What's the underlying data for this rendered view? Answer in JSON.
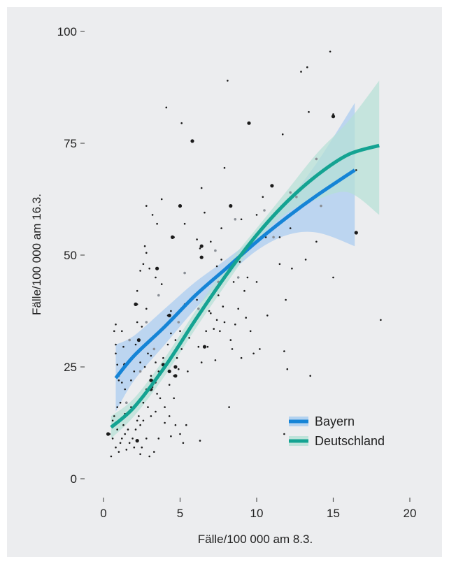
{
  "chart_data": {
    "type": "scatter",
    "xlabel": "Fälle/100 000 am 8.3.",
    "ylabel": "Fälle/100 000 am 16.3.",
    "xlim": [
      0,
      20
    ],
    "ylim": [
      0,
      100
    ],
    "x_ticks": [
      "0",
      "5",
      "10",
      "15",
      "20"
    ],
    "y_ticks": [
      "0",
      "25",
      "50",
      "75",
      "100"
    ],
    "grid": false,
    "legend_position": "bottom-right",
    "background": "#ecedef",
    "series": [
      {
        "name": "Bayern",
        "color": "#1584d6",
        "band_color": "#a9ccf0",
        "fit": [
          [
            0.8,
            22.5
          ],
          [
            2,
            27.5
          ],
          [
            4,
            34
          ],
          [
            6,
            41
          ],
          [
            8,
            47
          ],
          [
            10,
            53
          ],
          [
            12,
            58.5
          ],
          [
            14,
            63.5
          ],
          [
            16.4,
            69
          ]
        ],
        "ci_upper": [
          [
            0.8,
            30
          ],
          [
            2,
            32
          ],
          [
            4,
            38
          ],
          [
            6,
            44
          ],
          [
            8,
            49
          ],
          [
            10,
            54.5
          ],
          [
            12,
            62
          ],
          [
            14,
            71
          ],
          [
            16.4,
            84
          ]
        ],
        "ci_lower": [
          [
            0.8,
            15
          ],
          [
            2,
            22
          ],
          [
            4,
            30
          ],
          [
            6,
            38
          ],
          [
            8,
            45
          ],
          [
            10,
            51
          ],
          [
            12,
            54.5
          ],
          [
            14,
            55
          ],
          [
            16.4,
            52
          ]
        ]
      },
      {
        "name": "Deutschland",
        "color": "#14a392",
        "band_color": "#b6e0d6",
        "fit": [
          [
            0.5,
            11.5
          ],
          [
            2,
            16
          ],
          [
            4,
            25
          ],
          [
            6,
            35.5
          ],
          [
            8,
            45.5
          ],
          [
            10,
            54.5
          ],
          [
            12,
            62
          ],
          [
            14,
            68
          ],
          [
            16,
            72.5
          ],
          [
            18,
            74.5
          ]
        ],
        "ci_upper": [
          [
            0.5,
            14
          ],
          [
            2,
            18
          ],
          [
            4,
            27
          ],
          [
            6,
            37.5
          ],
          [
            8,
            47.5
          ],
          [
            10,
            56
          ],
          [
            12,
            64.5
          ],
          [
            14,
            73
          ],
          [
            16,
            80
          ],
          [
            18,
            89
          ]
        ],
        "ci_lower": [
          [
            0.5,
            9
          ],
          [
            2,
            14
          ],
          [
            4,
            23
          ],
          [
            6,
            33.5
          ],
          [
            8,
            43.5
          ],
          [
            10,
            53
          ],
          [
            12,
            59.5
          ],
          [
            14,
            62.5
          ],
          [
            16,
            64
          ],
          [
            18,
            59
          ]
        ]
      }
    ],
    "points": [
      [
        14.8,
        95.5
      ],
      [
        13.3,
        92
      ],
      [
        12.9,
        91
      ],
      [
        9.5,
        79.5
      ],
      [
        8.1,
        89
      ],
      [
        4.1,
        83
      ],
      [
        5.8,
        75.5
      ],
      [
        5.1,
        79.5
      ],
      [
        15,
        81.5
      ],
      [
        13.4,
        82
      ],
      [
        11.7,
        77
      ],
      [
        7.9,
        69.5
      ],
      [
        11,
        65.5
      ],
      [
        10.4,
        63
      ],
      [
        10,
        59
      ],
      [
        8.3,
        61
      ],
      [
        6.4,
        65
      ],
      [
        5,
        61
      ],
      [
        3.8,
        62.5
      ],
      [
        2.8,
        61
      ],
      [
        3.2,
        59
      ],
      [
        2.7,
        52
      ],
      [
        2.8,
        50.5
      ],
      [
        3.5,
        57
      ],
      [
        5.3,
        57
      ],
      [
        6.6,
        59.5
      ],
      [
        7.7,
        56
      ],
      [
        9,
        58
      ],
      [
        10.6,
        54
      ],
      [
        11.5,
        54
      ],
      [
        9.8,
        53.5
      ],
      [
        12.2,
        56
      ],
      [
        13.9,
        53
      ],
      [
        16.5,
        55
      ],
      [
        4.6,
        54
      ],
      [
        6.1,
        53.5
      ],
      [
        6.3,
        51.5
      ],
      [
        6.4,
        49.5
      ],
      [
        7,
        53
      ],
      [
        7.4,
        47.5
      ],
      [
        8.9,
        48.5
      ],
      [
        8.5,
        44
      ],
      [
        9.4,
        45
      ],
      [
        10,
        44
      ],
      [
        11.5,
        48
      ],
      [
        13.2,
        49
      ],
      [
        12.3,
        47
      ],
      [
        15,
        45
      ],
      [
        2.6,
        48
      ],
      [
        2.4,
        46.5
      ],
      [
        3,
        47
      ],
      [
        3.4,
        45
      ],
      [
        3.8,
        43.5
      ],
      [
        2.2,
        42
      ],
      [
        2.8,
        38
      ],
      [
        2.2,
        39
      ],
      [
        4.2,
        36.5
      ],
      [
        4.4,
        37.5
      ],
      [
        5.3,
        39
      ],
      [
        6.1,
        40
      ],
      [
        7,
        37
      ],
      [
        7.4,
        35.5
      ],
      [
        7.6,
        33
      ],
      [
        8.3,
        31
      ],
      [
        8.4,
        29
      ],
      [
        9,
        27
      ],
      [
        9.8,
        28
      ],
      [
        10.2,
        29
      ],
      [
        11.8,
        28.5
      ],
      [
        11.9,
        40
      ],
      [
        9.2,
        42
      ],
      [
        7.8,
        38.5
      ],
      [
        5.7,
        34
      ],
      [
        5,
        33
      ],
      [
        4.7,
        31
      ],
      [
        4.4,
        32.5
      ],
      [
        4.2,
        30
      ],
      [
        5.1,
        29
      ],
      [
        6.2,
        29.5
      ],
      [
        6.7,
        33
      ],
      [
        6.8,
        29.5
      ],
      [
        7.3,
        26.5
      ],
      [
        6.4,
        26
      ],
      [
        5.5,
        24
      ],
      [
        4.9,
        24.5
      ],
      [
        4.6,
        23
      ],
      [
        4.3,
        21
      ],
      [
        3.9,
        27
      ],
      [
        3.4,
        26
      ],
      [
        3.1,
        27.5
      ],
      [
        2.9,
        28
      ],
      [
        2.7,
        25
      ],
      [
        2.4,
        26
      ],
      [
        2,
        24
      ],
      [
        1.8,
        22
      ],
      [
        1.5,
        25.5
      ],
      [
        1.4,
        20
      ],
      [
        1.2,
        21.5
      ],
      [
        1,
        22
      ],
      [
        0.9,
        25.5
      ],
      [
        0.8,
        28
      ],
      [
        0.8,
        30
      ],
      [
        0.7,
        33
      ],
      [
        0.8,
        34.5
      ],
      [
        1.2,
        33
      ],
      [
        1.3,
        29.5
      ],
      [
        2.1,
        30
      ],
      [
        2.3,
        31
      ],
      [
        2.5,
        34
      ],
      [
        2.2,
        35
      ],
      [
        3.2,
        22
      ],
      [
        3.5,
        19
      ],
      [
        3.2,
        20.5
      ],
      [
        3.7,
        18
      ],
      [
        4,
        16
      ],
      [
        4.3,
        14
      ],
      [
        4.6,
        18
      ],
      [
        4.7,
        12
      ],
      [
        5,
        10
      ],
      [
        5.4,
        12
      ],
      [
        5.2,
        8
      ],
      [
        4.4,
        9.5
      ],
      [
        4,
        12.5
      ],
      [
        3.4,
        15
      ],
      [
        3.1,
        14
      ],
      [
        2.9,
        16
      ],
      [
        2.6,
        13
      ],
      [
        2.4,
        12
      ],
      [
        2.2,
        13
      ],
      [
        2.1,
        11
      ],
      [
        1.9,
        9
      ],
      [
        1.7,
        8
      ],
      [
        1.6,
        11
      ],
      [
        1.4,
        10
      ],
      [
        1.3,
        12
      ],
      [
        1.1,
        8
      ],
      [
        1,
        6
      ],
      [
        0.8,
        7
      ],
      [
        0.6,
        9
      ],
      [
        0.5,
        5
      ],
      [
        0.4,
        10
      ],
      [
        0.9,
        11
      ],
      [
        1.2,
        9
      ],
      [
        1.5,
        6.5
      ],
      [
        2,
        7
      ],
      [
        2.2,
        8.5
      ],
      [
        2.4,
        5.5
      ],
      [
        2.5,
        7
      ],
      [
        2.8,
        9
      ],
      [
        3,
        5
      ],
      [
        3.3,
        6
      ],
      [
        3.6,
        9
      ],
      [
        0.6,
        13
      ],
      [
        0.7,
        14
      ],
      [
        0.9,
        16
      ],
      [
        1.1,
        17
      ],
      [
        1.4,
        14.5
      ],
      [
        1.8,
        16
      ],
      [
        2.3,
        14
      ],
      [
        2.6,
        17
      ],
      [
        2.8,
        20
      ],
      [
        3.1,
        23
      ],
      [
        3.4,
        21.5
      ],
      [
        3.6,
        24
      ],
      [
        4.8,
        27
      ],
      [
        5.6,
        31.5
      ],
      [
        6.1,
        36
      ],
      [
        6.9,
        37.5
      ],
      [
        7.2,
        33.5
      ],
      [
        7.9,
        35
      ],
      [
        8.2,
        16
      ],
      [
        8.8,
        38
      ],
      [
        9.3,
        36
      ],
      [
        6.3,
        8.5
      ],
      [
        18.1,
        35.5
      ],
      [
        16.5,
        69
      ],
      [
        11.8,
        10
      ],
      [
        9.6,
        33
      ],
      [
        10.7,
        36.5
      ],
      [
        12,
        24.5
      ],
      [
        13.5,
        23
      ],
      [
        7.7,
        49
      ],
      [
        8.6,
        34.5
      ],
      [
        7.5,
        41
      ]
    ],
    "large_points": [
      [
        15,
        81
      ],
      [
        9.5,
        79.5
      ],
      [
        5.8,
        75.5
      ],
      [
        11,
        65.5
      ],
      [
        8.3,
        61
      ],
      [
        5,
        61
      ],
      [
        3.5,
        47
      ],
      [
        6.4,
        52
      ],
      [
        4.5,
        54
      ],
      [
        2.1,
        39
      ],
      [
        4.3,
        36.5
      ],
      [
        2.3,
        31
      ],
      [
        3.1,
        22
      ],
      [
        4.7,
        25
      ],
      [
        6.6,
        29.5
      ],
      [
        3.9,
        25.5
      ],
      [
        4.7,
        23
      ],
      [
        3.1,
        20
      ],
      [
        2.2,
        8.5
      ],
      [
        0.3,
        10
      ],
      [
        16.5,
        55
      ],
      [
        6.4,
        49.5
      ],
      [
        4.3,
        24
      ],
      [
        1.4,
        25.5
      ]
    ],
    "medium_points": [
      [
        13.9,
        71.5
      ],
      [
        12.2,
        64
      ],
      [
        11.1,
        54
      ],
      [
        8.6,
        58
      ],
      [
        7.3,
        51
      ],
      [
        5.3,
        46
      ],
      [
        3.6,
        41
      ],
      [
        2.8,
        35
      ],
      [
        1.7,
        31
      ],
      [
        1,
        23
      ],
      [
        1.5,
        17
      ],
      [
        2.4,
        24
      ],
      [
        3.3,
        29
      ],
      [
        4.9,
        35
      ],
      [
        6.2,
        38
      ],
      [
        7.5,
        44
      ],
      [
        8.8,
        45
      ],
      [
        10.5,
        60
      ],
      [
        12.6,
        63
      ],
      [
        14.2,
        61
      ]
    ]
  }
}
